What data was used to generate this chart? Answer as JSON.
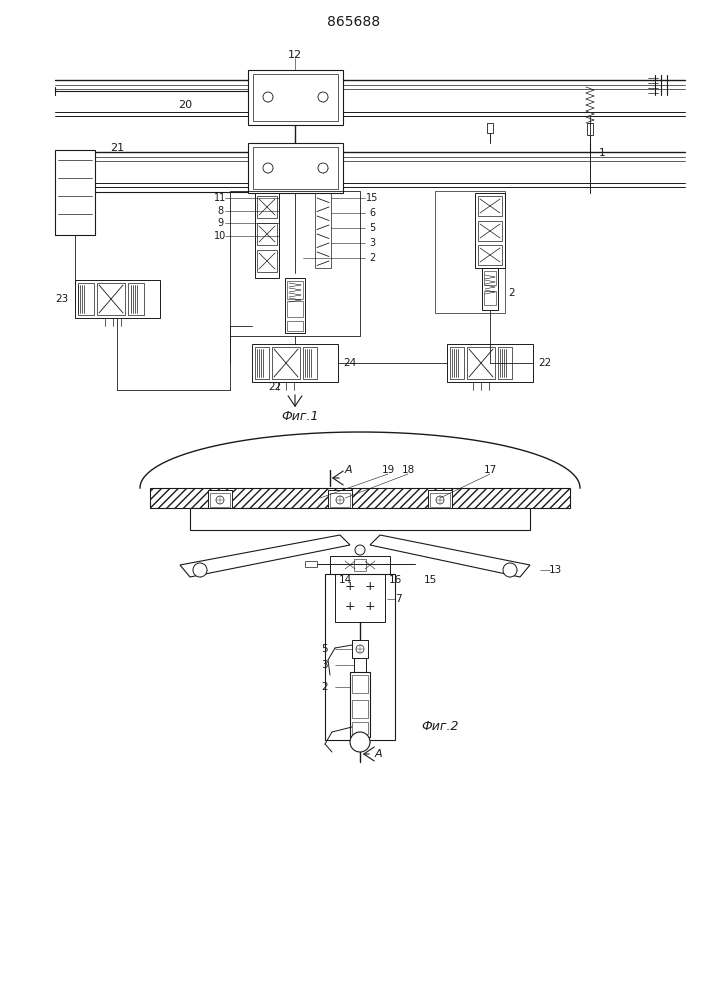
{
  "title": "865688",
  "fig1_label": "Фиг.1",
  "fig2_label": "Фиг.2",
  "bg_color": "#ffffff",
  "line_color": "#1a1a1a",
  "title_fontsize": 10,
  "figsize": [
    7.07,
    10.0
  ],
  "dpi": 100
}
